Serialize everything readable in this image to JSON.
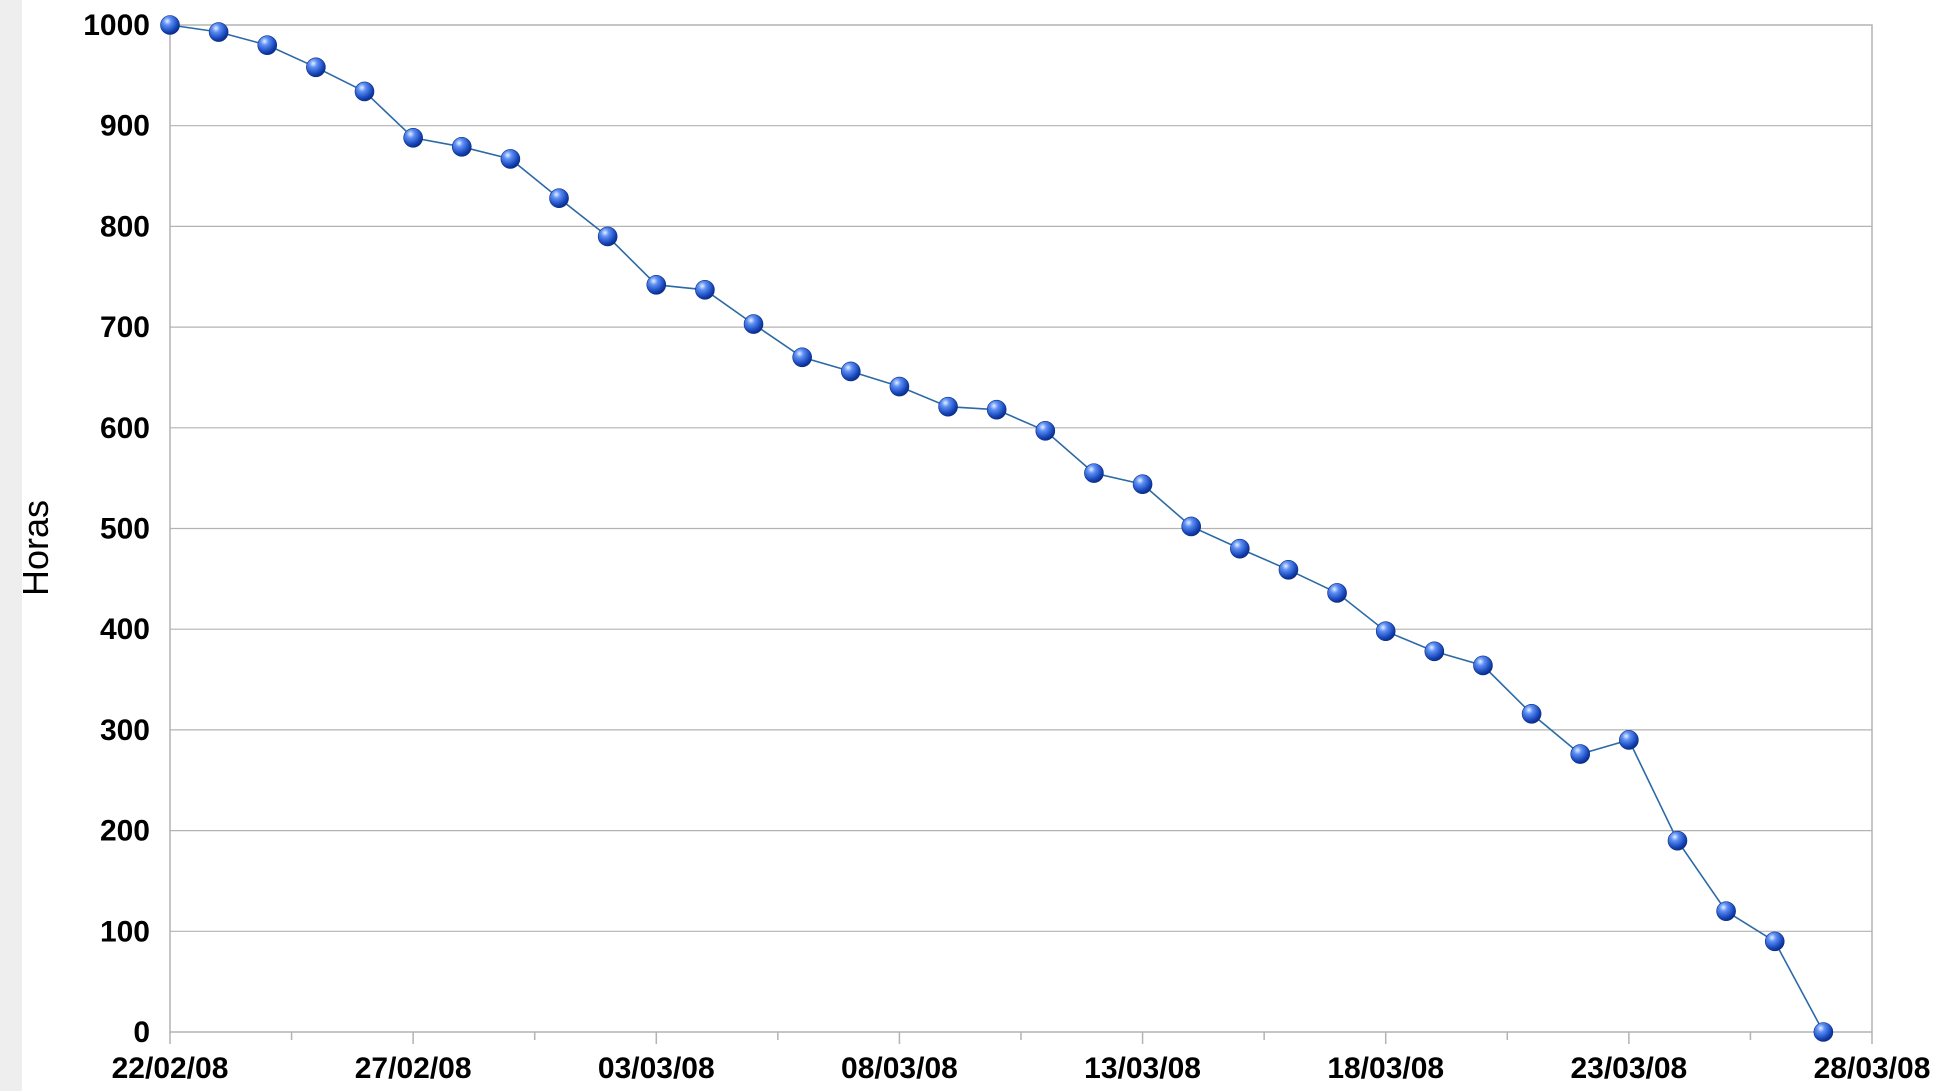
{
  "chart_data": {
    "type": "line",
    "title": "",
    "xlabel": "",
    "ylabel": "Horas",
    "ylim": [
      0,
      1000
    ],
    "yticks": [
      0,
      100,
      200,
      300,
      400,
      500,
      600,
      700,
      800,
      900,
      1000
    ],
    "xlim": [
      "22/02/08",
      "28/03/08"
    ],
    "xticks": [
      "22/02/08",
      "27/02/08",
      "03/03/08",
      "08/03/08",
      "13/03/08",
      "18/03/08",
      "23/03/08",
      "28/03/08"
    ],
    "grid": true,
    "legend": "none",
    "series": [
      {
        "color": "#1f55c8",
        "line_color": "#2c6aa6",
        "marker": "sphere",
        "x": [
          "22/02/08",
          "23/02/08",
          "24/02/08",
          "25/02/08",
          "26/02/08",
          "27/02/08",
          "28/02/08",
          "29/02/08",
          "01/03/08",
          "02/03/08",
          "03/03/08",
          "04/03/08",
          "05/03/08",
          "06/03/08",
          "07/03/08",
          "08/03/08",
          "09/03/08",
          "10/03/08",
          "11/03/08",
          "12/03/08",
          "13/03/08",
          "14/03/08",
          "15/03/08",
          "16/03/08",
          "17/03/08",
          "18/03/08",
          "19/03/08",
          "20/03/08",
          "21/03/08",
          "22/03/08",
          "23/03/08",
          "24/03/08",
          "25/03/08",
          "26/03/08",
          "27/03/08"
        ],
        "values": [
          1000,
          993,
          980,
          958,
          934,
          888,
          879,
          867,
          828,
          790,
          742,
          737,
          703,
          670,
          656,
          641,
          621,
          618,
          597,
          555,
          544,
          502,
          480,
          459,
          436,
          398,
          378,
          364,
          316,
          276,
          290,
          190,
          120,
          90,
          0
        ]
      }
    ]
  }
}
